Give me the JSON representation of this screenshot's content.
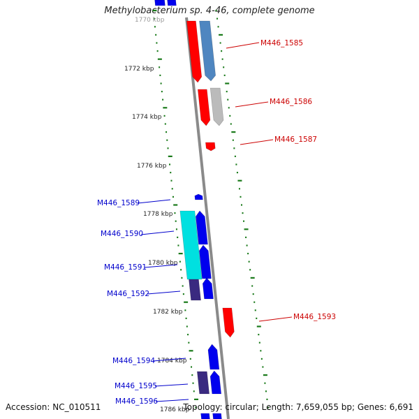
{
  "title": "Methylobacterium sp. 4-46, complete genome",
  "footer": {
    "accession": "Accession: NC_010511",
    "summary": "Topology: circular; Length: 7,659,055 bp; Genes: 6,691"
  },
  "colors": {
    "forward_label": "#cc0000",
    "reverse_label": "#0000cc",
    "kbp_ticks": "#1a7a1a",
    "backbone": "#888888"
  },
  "kbp_labels": [
    {
      "label": "1770 kbp"
    },
    {
      "label": "1772 kbp"
    },
    {
      "label": "1774 kbp"
    },
    {
      "label": "1776 kbp"
    },
    {
      "label": "1778 kbp"
    },
    {
      "label": "1780 kbp"
    },
    {
      "label": "1782 kbp"
    },
    {
      "label": "1784 kbp"
    },
    {
      "label": "1786 kbp"
    }
  ],
  "genes": [
    {
      "label": "M446_1585",
      "strand": "+"
    },
    {
      "label": "M446_1586",
      "strand": "+"
    },
    {
      "label": "M446_1587",
      "strand": "+"
    },
    {
      "label": "M446_1589",
      "strand": "-"
    },
    {
      "label": "M446_1590",
      "strand": "-"
    },
    {
      "label": "M446_1591",
      "strand": "-"
    },
    {
      "label": "M446_1592",
      "strand": "-"
    },
    {
      "label": "M446_1593",
      "strand": "+"
    },
    {
      "label": "M446_1594",
      "strand": "-"
    },
    {
      "label": "M446_1595",
      "strand": "-"
    },
    {
      "label": "M446_1596",
      "strand": "-"
    }
  ]
}
